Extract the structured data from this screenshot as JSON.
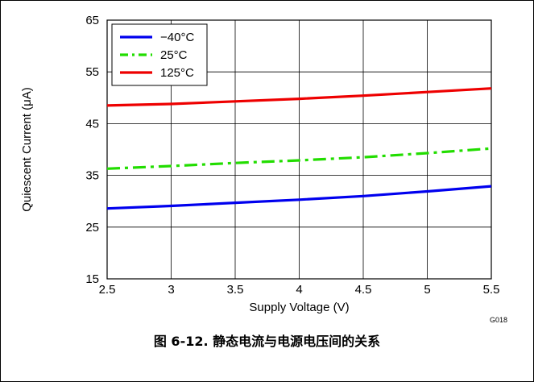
{
  "figure_id": "G018",
  "caption": "图 6-12. 静态电流与电源电压间的关系",
  "chart_data": {
    "type": "line",
    "xlabel": "Supply Voltage (V)",
    "ylabel": "Quiescent Current (μA)",
    "xlim": [
      2.5,
      5.5
    ],
    "ylim": [
      15,
      65
    ],
    "x_ticks": [
      "2.5",
      "3",
      "3.5",
      "4",
      "4.5",
      "5",
      "5.5"
    ],
    "y_ticks": [
      "15",
      "25",
      "35",
      "45",
      "55",
      "65"
    ],
    "grid": true,
    "legend_position": "top-left",
    "series": [
      {
        "name": "−40°C",
        "color": "#0000ee",
        "style": "solid",
        "x": [
          2.5,
          3.0,
          3.5,
          4.0,
          4.5,
          5.0,
          5.5
        ],
        "y": [
          28.6,
          29.1,
          29.7,
          30.3,
          31.0,
          31.9,
          32.9
        ]
      },
      {
        "name": "25°C",
        "color": "#22dd00",
        "style": "dashdot",
        "x": [
          2.5,
          3.0,
          3.5,
          4.0,
          4.5,
          5.0,
          5.5
        ],
        "y": [
          36.3,
          36.8,
          37.4,
          37.9,
          38.5,
          39.3,
          40.2
        ]
      },
      {
        "name": "125°C",
        "color": "#ee0000",
        "style": "solid",
        "x": [
          2.5,
          3.0,
          3.5,
          4.0,
          4.5,
          5.0,
          5.5
        ],
        "y": [
          48.5,
          48.8,
          49.3,
          49.8,
          50.4,
          51.1,
          51.8
        ]
      }
    ]
  }
}
